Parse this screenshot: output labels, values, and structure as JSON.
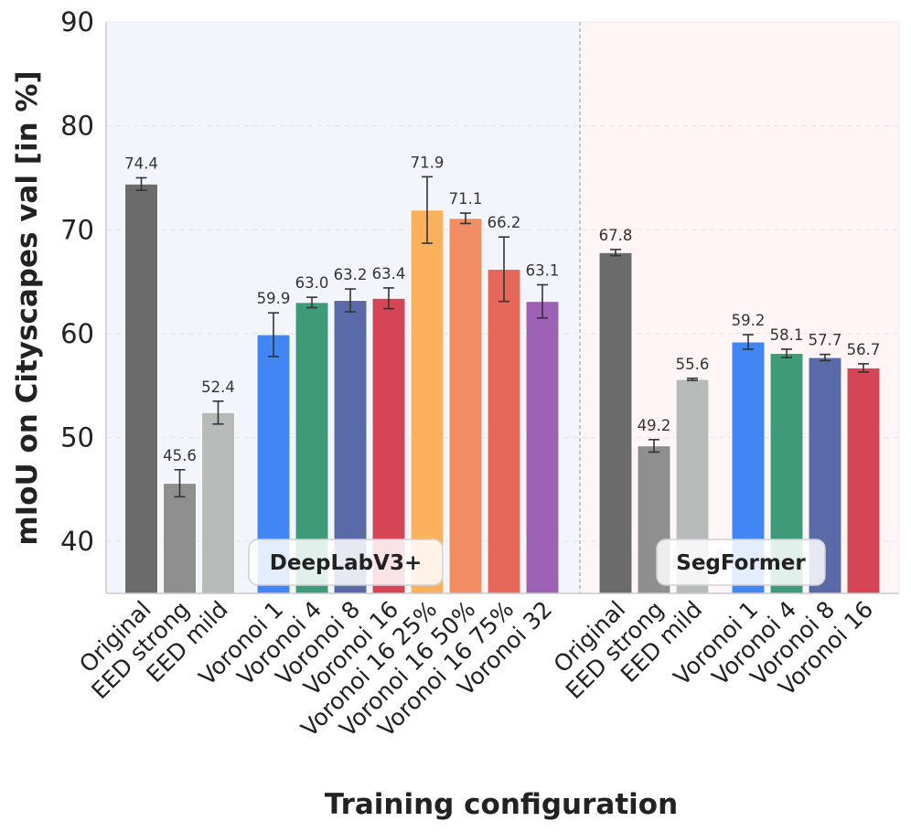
{
  "chart_data": {
    "type": "bar",
    "title": "",
    "xlabel": "Training configuration",
    "ylabel": "mIoU on Cityscapes val [in %]",
    "ylim": [
      35,
      90
    ],
    "yticks": [
      40,
      50,
      60,
      70,
      80,
      90
    ],
    "grid": true,
    "groups": [
      {
        "name": "DeepLabV3+",
        "background": "#f3f5fc",
        "bars": [
          {
            "category": "Original",
            "value": 74.4,
            "label": "74.4",
            "err": 0.6,
            "color": "#6b6b6b"
          },
          {
            "category": "EED strong",
            "value": 45.6,
            "label": "45.6",
            "err": 1.3,
            "color": "#8f8f8f"
          },
          {
            "category": "EED mild",
            "value": 52.4,
            "label": "52.4",
            "err": 1.1,
            "color": "#b8b9b9"
          },
          {
            "category": "Voronoi 1",
            "value": 59.9,
            "label": "59.9",
            "err": 2.1,
            "color": "#4285f4"
          },
          {
            "category": "Voronoi 4",
            "value": 63.0,
            "label": "63.0",
            "err": 0.5,
            "color": "#3f9a7a"
          },
          {
            "category": "Voronoi 8",
            "value": 63.2,
            "label": "63.2",
            "err": 1.1,
            "color": "#5a6aa8"
          },
          {
            "category": "Voronoi 16",
            "value": 63.4,
            "label": "63.4",
            "err": 1.0,
            "color": "#d64556"
          },
          {
            "category": "Voronoi 16 25%",
            "value": 71.9,
            "label": "71.9",
            "err": 3.2,
            "color": "#fbb05c"
          },
          {
            "category": "Voronoi 16 50%",
            "value": 71.1,
            "label": "71.1",
            "err": 0.5,
            "color": "#f28c62"
          },
          {
            "category": "Voronoi 16 75%",
            "value": 66.2,
            "label": "66.2",
            "err": 3.1,
            "color": "#e5685a"
          },
          {
            "category": "Voronoi 32",
            "value": 63.1,
            "label": "63.1",
            "err": 1.6,
            "color": "#9d62b5"
          }
        ]
      },
      {
        "name": "SegFormer",
        "background": "#fff4f6",
        "bars": [
          {
            "category": "Original",
            "value": 67.8,
            "label": "67.8",
            "err": 0.3,
            "color": "#6b6b6b"
          },
          {
            "category": "EED strong",
            "value": 49.2,
            "label": "49.2",
            "err": 0.6,
            "color": "#8f8f8f"
          },
          {
            "category": "EED mild",
            "value": 55.6,
            "label": "55.6",
            "err": 0.1,
            "color": "#b8b9b9"
          },
          {
            "category": "Voronoi 1",
            "value": 59.2,
            "label": "59.2",
            "err": 0.7,
            "color": "#4285f4"
          },
          {
            "category": "Voronoi 4",
            "value": 58.1,
            "label": "58.1",
            "err": 0.4,
            "color": "#3f9a7a"
          },
          {
            "category": "Voronoi 8",
            "value": 57.7,
            "label": "57.7",
            "err": 0.3,
            "color": "#5a6aa8"
          },
          {
            "category": "Voronoi 16",
            "value": 56.7,
            "label": "56.7",
            "err": 0.4,
            "color": "#d64556"
          }
        ]
      }
    ]
  }
}
